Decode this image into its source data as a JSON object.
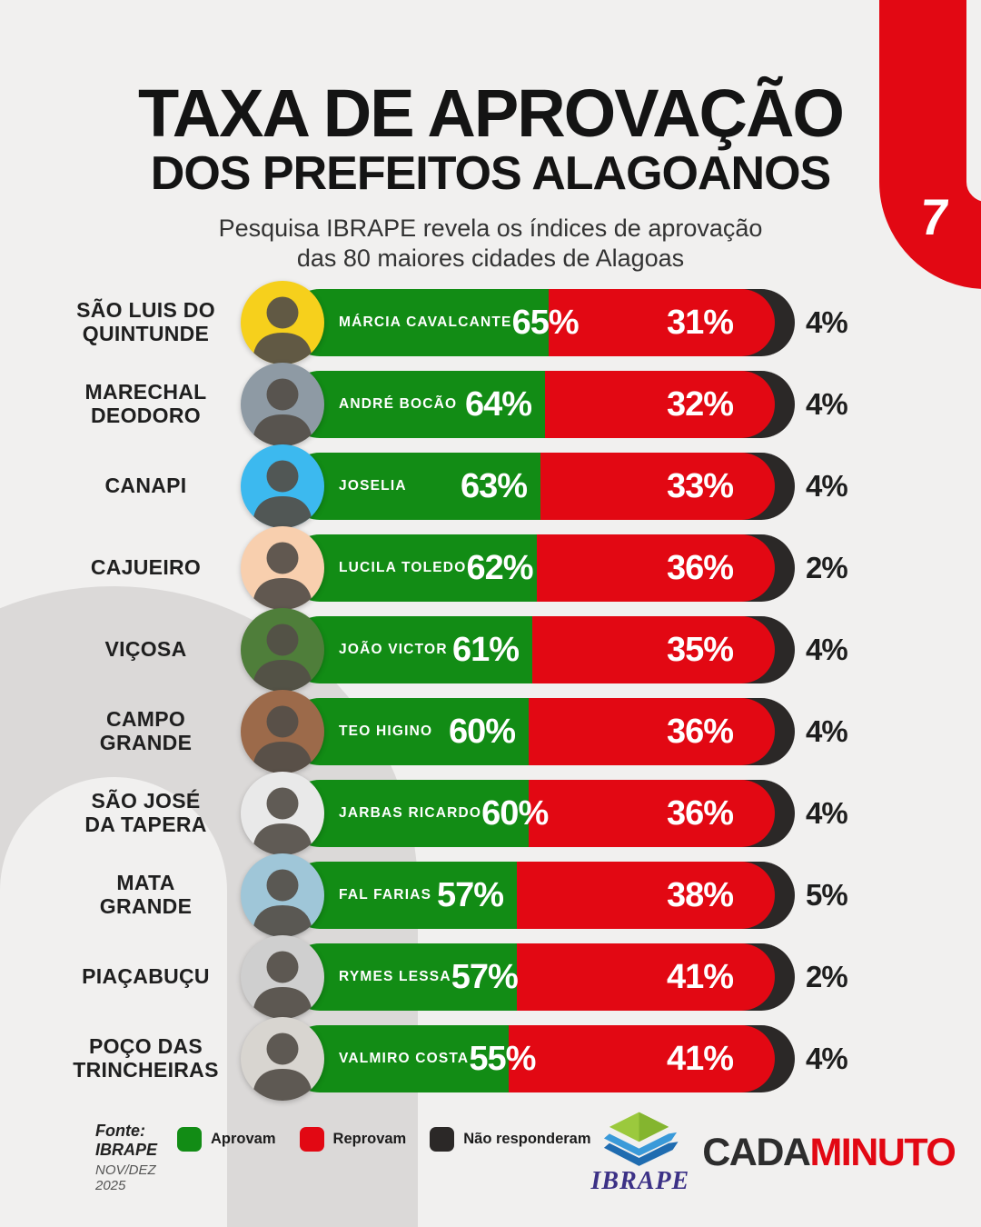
{
  "theme": {
    "background": "#f1f0ef",
    "watermark_gray": "#dbd9d8",
    "green": "#128c15",
    "red": "#e20813",
    "dark": "#2b2827",
    "ribbon_red": "#e30613",
    "title_color": "#141414"
  },
  "badge": {
    "number": "7"
  },
  "header": {
    "title_line1": "TAXA DE APROVAÇÃO",
    "title_line2": "DOS PREFEITOS ALAGOANOS",
    "subtitle_line1": "Pesquisa IBRAPE revela os índices de aprovação",
    "subtitle_line2": "das 80 maiores cidades de Alagoas"
  },
  "chart_data": {
    "type": "bar",
    "title": "TAXA DE APROVAÇÃO DOS PREFEITOS ALAGOANOS",
    "unit": "%",
    "stack_order": [
      "approve",
      "disapprove",
      "no_answer"
    ],
    "rows": [
      {
        "city": "SÃO LUIS DO\nQUINTUNDE",
        "mayor": "MÁRCIA CAVALCANTE",
        "approve": 65,
        "disapprove": 31,
        "no_answer": 4,
        "avatar_bg": "#f6d01c"
      },
      {
        "city": "MARECHAL\nDEODORO",
        "mayor": "ANDRÉ BOCÃO",
        "approve": 64,
        "disapprove": 32,
        "no_answer": 4,
        "avatar_bg": "#8e9aa4"
      },
      {
        "city": "CANAPI",
        "mayor": "JOSELIA",
        "approve": 63,
        "disapprove": 33,
        "no_answer": 4,
        "avatar_bg": "#3cb9ef"
      },
      {
        "city": "CAJUEIRO",
        "mayor": "LUCILA TOLEDO",
        "approve": 62,
        "disapprove": 36,
        "no_answer": 2,
        "avatar_bg": "#f8cfae"
      },
      {
        "city": "VIÇOSA",
        "mayor": "JOÃO VICTOR",
        "approve": 61,
        "disapprove": 35,
        "no_answer": 4,
        "avatar_bg": "#4f7e3a"
      },
      {
        "city": "CAMPO\nGRANDE",
        "mayor": "TEO HIGINO",
        "approve": 60,
        "disapprove": 36,
        "no_answer": 4,
        "avatar_bg": "#9c6a4a"
      },
      {
        "city": "SÃO JOSÉ\nDA TAPERA",
        "mayor": "JARBAS RICARDO",
        "approve": 60,
        "disapprove": 36,
        "no_answer": 4,
        "avatar_bg": "#e9e9e9"
      },
      {
        "city": "MATA\nGRANDE",
        "mayor": "FAL FARIAS",
        "approve": 57,
        "disapprove": 38,
        "no_answer": 5,
        "avatar_bg": "#9fc6d8"
      },
      {
        "city": "PIAÇABUÇU",
        "mayor": "RYMES LESSA",
        "approve": 57,
        "disapprove": 41,
        "no_answer": 2,
        "avatar_bg": "#cfcfcf"
      },
      {
        "city": "POÇO DAS\nTRINCHEIRAS",
        "mayor": "VALMIRO COSTA",
        "approve": 55,
        "disapprove": 41,
        "no_answer": 4,
        "avatar_bg": "#d8d5d0"
      }
    ]
  },
  "legend": {
    "source_line1": "Fonte: IBRAPE",
    "source_line2": "NOV/DEZ 2025",
    "items": [
      {
        "label": "Aprovam",
        "color": "#128c15"
      },
      {
        "label": "Reprovam",
        "color": "#e20813"
      },
      {
        "label": "Não responderam",
        "color": "#2b2827"
      }
    ]
  },
  "footer": {
    "ibrape_text": "IBRAPE",
    "cadaminuto_dark": "CADA",
    "cadaminuto_red": "MINUTO"
  }
}
